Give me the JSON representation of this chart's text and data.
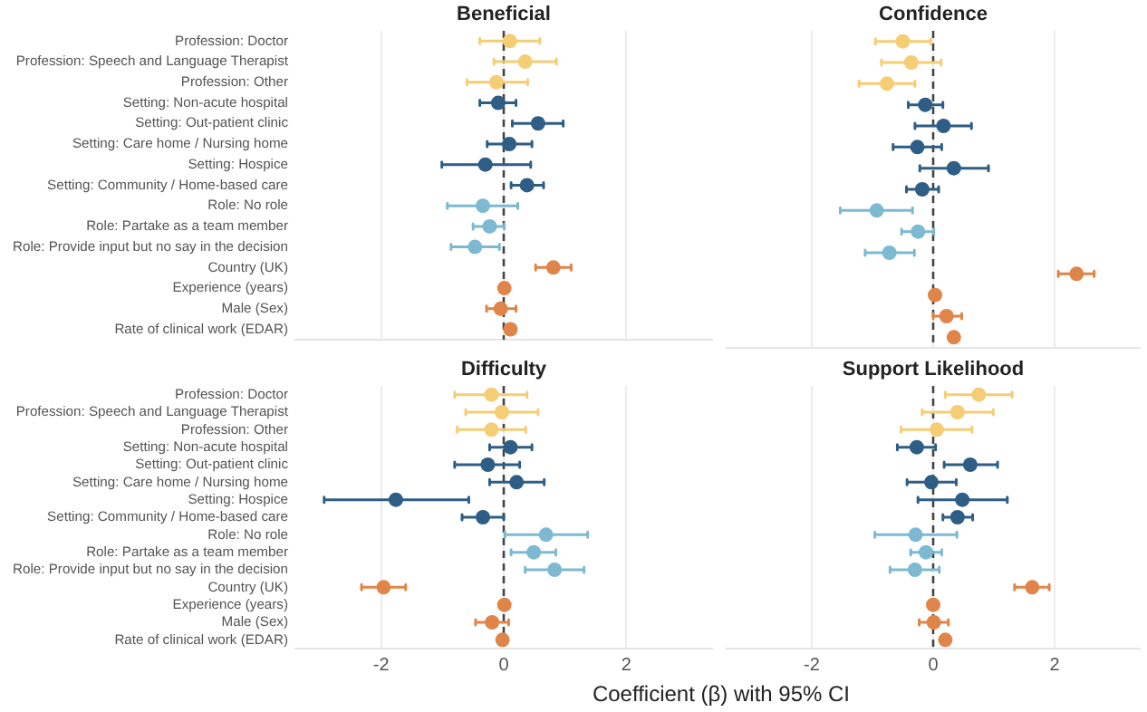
{
  "chart_data": [
    {
      "type": "scatter",
      "title": "Beneficial",
      "orientation": "horizontal",
      "categories": [
        "Profession: Doctor",
        "Profession: Speech and Language Therapist",
        "Profession: Other",
        "Setting: Non-acute hospital",
        "Setting: Out-patient clinic",
        "Setting: Care home / Nursing home",
        "Setting: Hospice",
        "Setting: Community / Home-based care",
        "Role: No role",
        "Role: Partake as a team member",
        "Role: Provide input but no say in the decision",
        "Country (UK)",
        "Experience (years)",
        "Male (Sex)",
        "Rate of clinical work (EDAR)"
      ],
      "values": [
        0.1,
        0.35,
        -0.12,
        -0.09,
        0.56,
        0.09,
        -0.3,
        0.38,
        -0.34,
        -0.23,
        -0.47,
        0.81,
        0.01,
        -0.05,
        0.11
      ],
      "errors": [
        [
          -0.39,
          0.59
        ],
        [
          -0.16,
          0.86
        ],
        [
          -0.6,
          0.39
        ],
        [
          -0.39,
          0.2
        ],
        [
          0.14,
          0.97
        ],
        [
          -0.27,
          0.46
        ],
        [
          -1.01,
          0.44
        ],
        [
          0.12,
          0.65
        ],
        [
          -0.92,
          0.23
        ],
        [
          -0.5,
          0.01
        ],
        [
          -0.86,
          -0.07
        ],
        [
          0.52,
          1.1
        ],
        null,
        [
          -0.28,
          0.2
        ],
        null
      ],
      "colors": [
        "#f5cd75",
        "#f5cd75",
        "#f5cd75",
        "#2e5d86",
        "#2e5d86",
        "#2e5d86",
        "#2e5d86",
        "#2e5d86",
        "#7dbad2",
        "#7dbad2",
        "#7dbad2",
        "#e0854a",
        "#e0854a",
        "#e0854a",
        "#e0854a"
      ],
      "xlim": [
        -3.4,
        3.4
      ],
      "xticks": [
        -2,
        0,
        2
      ],
      "grid": "x",
      "marker": "circle",
      "tick_labels": "y",
      "ref_lines": [
        {
          "axis": "x",
          "value": 0,
          "color": "#444444",
          "line_style": "dashed"
        }
      ]
    },
    {
      "type": "scatter",
      "title": "Confidence",
      "orientation": "horizontal",
      "categories": [
        null,
        null,
        null,
        null,
        null,
        null,
        null,
        null,
        null,
        null,
        null,
        null,
        null,
        null,
        null
      ],
      "values": [
        -0.5,
        -0.36,
        -0.76,
        -0.13,
        0.17,
        -0.26,
        0.34,
        -0.18,
        -0.93,
        -0.25,
        -0.72,
        2.36,
        0.03,
        0.22,
        0.34
      ],
      "errors": [
        [
          -0.95,
          -0.04
        ],
        [
          -0.85,
          0.13
        ],
        [
          -1.22,
          -0.3
        ],
        [
          -0.41,
          0.16
        ],
        [
          -0.3,
          0.63
        ],
        [
          -0.66,
          0.14
        ],
        [
          -0.22,
          0.91
        ],
        [
          -0.44,
          0.09
        ],
        [
          -1.53,
          -0.34
        ],
        [
          -0.52,
          0.01
        ],
        [
          -1.12,
          -0.31
        ],
        [
          2.06,
          2.65
        ],
        null,
        [
          0.0,
          0.47
        ],
        null
      ],
      "colors": [
        "#f5cd75",
        "#f5cd75",
        "#f5cd75",
        "#2e5d86",
        "#2e5d86",
        "#2e5d86",
        "#2e5d86",
        "#2e5d86",
        "#7dbad2",
        "#7dbad2",
        "#7dbad2",
        "#e0854a",
        "#e0854a",
        "#e0854a",
        "#e0854a"
      ],
      "xlim": [
        -3.4,
        3.4
      ],
      "xticks": [
        -2,
        0,
        2
      ],
      "grid": "x",
      "marker": "circle",
      "tick_labels": false,
      "ref_lines": [
        {
          "axis": "x",
          "value": 0,
          "color": "#444444",
          "line_style": "dashed"
        }
      ]
    },
    {
      "type": "scatter",
      "title": "Difficulty",
      "orientation": "horizontal",
      "xlabel": "Coefficient (β) with 95% CI",
      "categories": [
        "Profession: Doctor",
        "Profession: Speech and Language Therapist",
        "Profession: Other",
        "Setting: Non-acute hospital",
        "Setting: Out-patient clinic",
        "Setting: Care home / Nursing home",
        "Setting: Hospice",
        "Setting: Community / Home-based care",
        "Role: No role",
        "Role: Partake as a team member",
        "Role: Provide input but no say in the decision",
        "Country (UK)",
        "Experience (years)",
        "Male (Sex)",
        "Rate of clinical work (EDAR)"
      ],
      "values": [
        -0.2,
        -0.03,
        -0.2,
        0.11,
        -0.26,
        0.21,
        -1.76,
        -0.34,
        0.69,
        0.49,
        0.83,
        -1.96,
        0.01,
        -0.19,
        -0.02
      ],
      "errors": [
        [
          -0.8,
          0.38
        ],
        [
          -0.62,
          0.56
        ],
        [
          -0.76,
          0.36
        ],
        [
          -0.23,
          0.46
        ],
        [
          -0.8,
          0.26
        ],
        [
          -0.23,
          0.66
        ],
        [
          -2.93,
          -0.57
        ],
        [
          -0.68,
          0.0
        ],
        [
          0.02,
          1.37
        ],
        [
          0.12,
          0.85
        ],
        [
          0.35,
          1.31
        ],
        [
          -2.32,
          -1.6
        ],
        null,
        [
          -0.46,
          0.08
        ],
        null
      ],
      "colors": [
        "#f5cd75",
        "#f5cd75",
        "#f5cd75",
        "#2e5d86",
        "#2e5d86",
        "#2e5d86",
        "#2e5d86",
        "#2e5d86",
        "#7dbad2",
        "#7dbad2",
        "#7dbad2",
        "#e0854a",
        "#e0854a",
        "#e0854a",
        "#e0854a"
      ],
      "xlim": [
        -3.4,
        3.4
      ],
      "xticks": [
        -2,
        0,
        2
      ],
      "grid": "x",
      "marker": "circle",
      "ref_lines": [
        {
          "axis": "x",
          "value": 0,
          "color": "#444444",
          "line_style": "dashed"
        }
      ]
    },
    {
      "type": "scatter",
      "title": "Support Likelihood",
      "orientation": "horizontal",
      "categories": [
        null,
        null,
        null,
        null,
        null,
        null,
        null,
        null,
        null,
        null,
        null,
        null,
        null,
        null,
        null
      ],
      "values": [
        0.75,
        0.4,
        0.06,
        -0.27,
        0.61,
        -0.03,
        0.48,
        0.4,
        -0.29,
        -0.12,
        -0.3,
        1.63,
        0.0,
        0.01,
        0.2
      ],
      "errors": [
        [
          0.2,
          1.3
        ],
        [
          -0.18,
          0.99
        ],
        [
          -0.53,
          0.64
        ],
        [
          -0.59,
          0.04
        ],
        [
          0.18,
          1.06
        ],
        [
          -0.43,
          0.38
        ],
        [
          -0.25,
          1.22
        ],
        [
          0.16,
          0.65
        ],
        [
          -0.96,
          0.39
        ],
        [
          -0.37,
          0.14
        ],
        [
          -0.71,
          0.1
        ],
        [
          1.34,
          1.91
        ],
        null,
        [
          -0.23,
          0.25
        ],
        null
      ],
      "colors": [
        "#f5cd75",
        "#f5cd75",
        "#f5cd75",
        "#2e5d86",
        "#2e5d86",
        "#2e5d86",
        "#2e5d86",
        "#2e5d86",
        "#7dbad2",
        "#7dbad2",
        "#7dbad2",
        "#e0854a",
        "#e0854a",
        "#e0854a",
        "#e0854a"
      ],
      "xlim": [
        -3.4,
        3.4
      ],
      "xticks": [
        -2,
        0,
        2
      ],
      "grid": "x",
      "marker": "circle",
      "tick_labels": "x",
      "ref_lines": [
        {
          "axis": "x",
          "value": 0,
          "color": "#444444",
          "line_style": "dashed"
        }
      ]
    }
  ]
}
